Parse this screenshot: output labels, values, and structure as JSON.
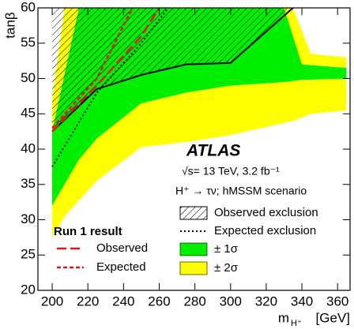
{
  "chart_data": {
    "type": "exclusion",
    "y_label": "tanβ",
    "x_label": "m",
    "x_label_sub": "H⁺",
    "x_label_unit": "[GeV]",
    "annotations": [
      "ATLAS",
      "√s= 13 TeV, 3.2 fb⁻¹",
      "H⁺ → τν; hMSSM scenario"
    ],
    "run1_title": "Run 1 result",
    "xlim": [
      192,
      367
    ],
    "ylim": [
      20,
      60
    ],
    "xticks": [
      200,
      220,
      240,
      260,
      280,
      300,
      320,
      340,
      360
    ],
    "yticks": [
      20,
      25,
      30,
      35,
      40,
      45,
      50,
      55,
      60
    ],
    "series": [
      {
        "name": "± 2σ",
        "style": "band",
        "color": "#ffff00",
        "x": [
          200,
          207,
          225,
          250,
          275,
          300,
          335,
          345,
          365
        ],
        "upper": [
          47,
          60,
          60,
          60,
          60,
          60,
          60,
          53.5,
          53
        ],
        "lower": [
          27.5,
          30.5,
          35.5,
          40.3,
          41,
          42,
          44,
          45,
          45.5
        ]
      },
      {
        "name": "± 1σ",
        "style": "band",
        "color": "#00ee00",
        "x": [
          200,
          215,
          225,
          250,
          275,
          300,
          330,
          340,
          365
        ],
        "upper": [
          42.5,
          60,
          60,
          60,
          60,
          60,
          60,
          52,
          51.5
        ],
        "lower": [
          32,
          38.5,
          41.5,
          46.5,
          48,
          49,
          49.5,
          49.8,
          50
        ]
      },
      {
        "name": "Observed exclusion",
        "style": "solid",
        "hatch": true,
        "color": "#000000",
        "x": [
          200,
          225,
          250,
          275,
          300,
          335
        ],
        "values": [
          42.5,
          48.5,
          50.5,
          52,
          52.2,
          60
        ]
      },
      {
        "name": "Expected exclusion",
        "style": "dotted",
        "color": "#000000",
        "x": [
          200,
          225,
          250,
          265
        ],
        "values": [
          37.5,
          48,
          55,
          60
        ]
      },
      {
        "name": "Observed",
        "style": "dashed",
        "color": "#e8141c",
        "x": [
          200,
          225,
          250,
          260
        ],
        "values": [
          42.5,
          49,
          56,
          60
        ]
      },
      {
        "name": "Expected",
        "style": "dotted",
        "color": "#e8141c",
        "x": [
          200,
          225,
          245
        ],
        "values": [
          43,
          50,
          60
        ]
      }
    ]
  }
}
